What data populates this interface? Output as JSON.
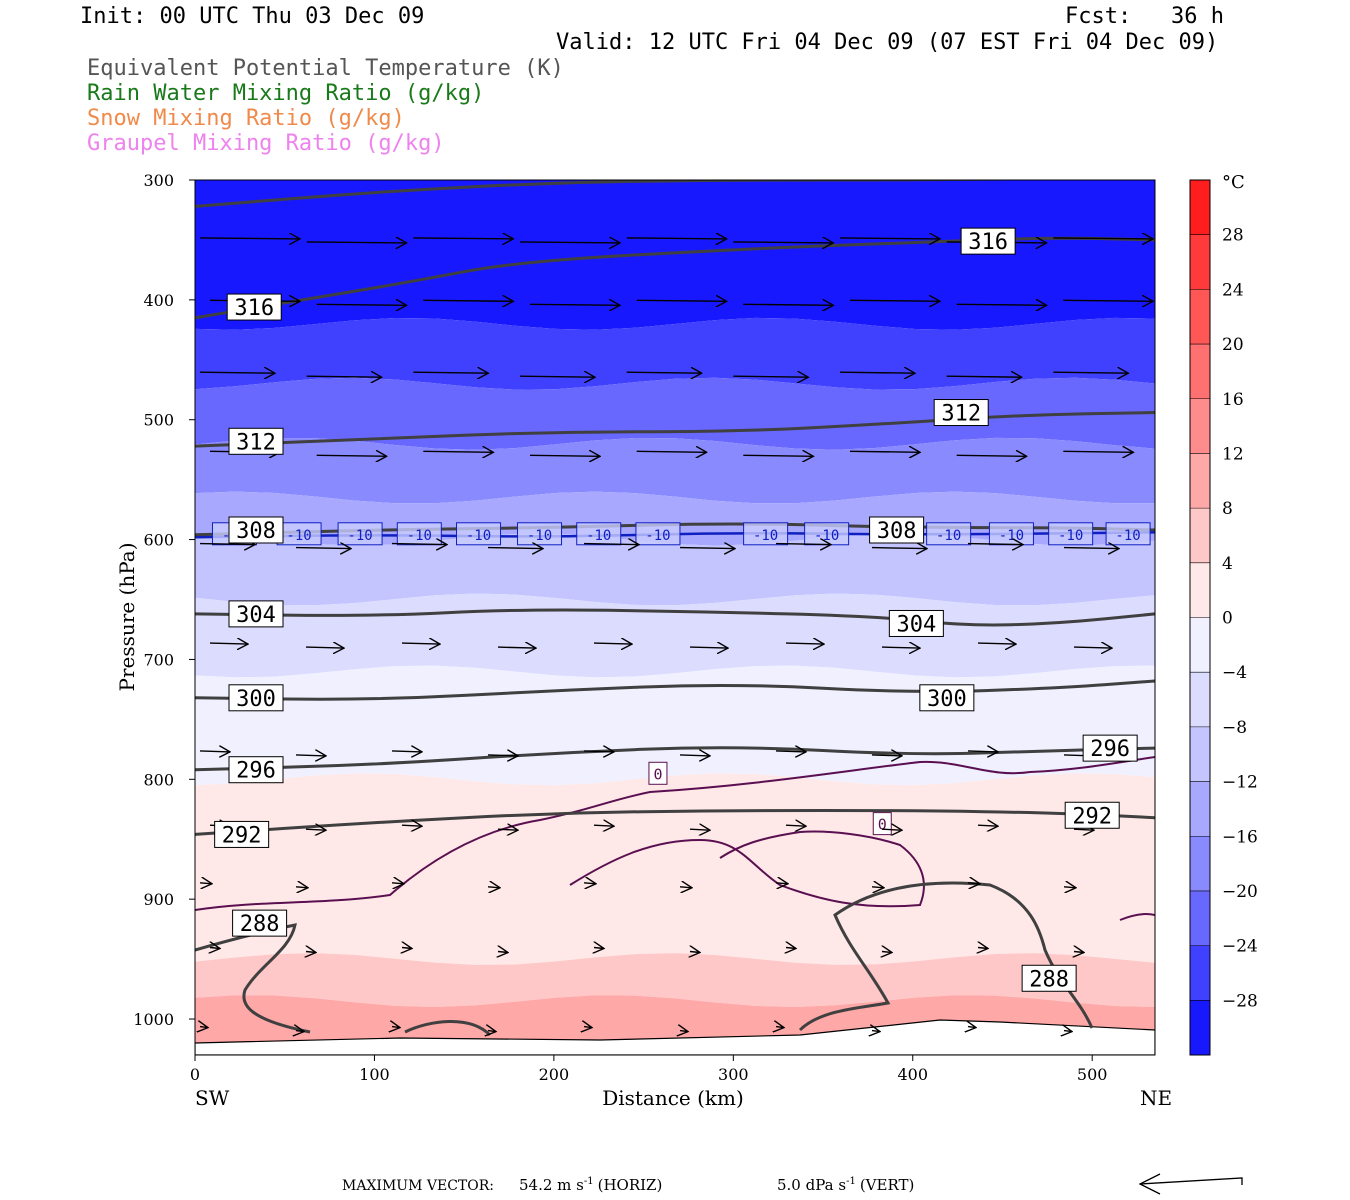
{
  "header": {
    "init": "Init: 00 UTC Thu 03 Dec 09",
    "fcst": "Fcst:   36 h",
    "valid": "Valid: 12 UTC Fri 04 Dec 09 (07 EST Fri 04 Dec 09)"
  },
  "legend": [
    {
      "label": "Equivalent Potential Temperature (K)",
      "color": "#555555"
    },
    {
      "label": "Rain Water Mixing Ratio (g/kg)",
      "color": "#1a7a1a"
    },
    {
      "label": "Snow Mixing Ratio (g/kg)",
      "color": "#f08a4b"
    },
    {
      "label": "Graupel Mixing Ratio (g/kg)",
      "color": "#ee82ee"
    }
  ],
  "footer": {
    "max_vector": "MAXIMUM VECTOR:",
    "horiz_value": "54.2 m s",
    "horiz_exp": "-1",
    "horiz_unit": "(HORIZ)",
    "vert_value": "5.0 dPa s",
    "vert_exp": "-1",
    "vert_unit": "(VERT)"
  },
  "chart_data": {
    "type": "cross-section",
    "xlabel": "Distance (km)",
    "ylabel": "Pressure (hPa)",
    "x_left_label": "SW",
    "x_right_label": "NE",
    "xlim": [
      0,
      535
    ],
    "ylim": [
      1025,
      300
    ],
    "xticks": [
      0,
      100,
      200,
      300,
      400,
      500
    ],
    "yticks": [
      300,
      400,
      500,
      600,
      700,
      800,
      900,
      1000
    ],
    "colorbar": {
      "unit": "°C",
      "ticks": [
        28,
        24,
        20,
        16,
        12,
        8,
        4,
        0,
        -4,
        -8,
        -12,
        -16,
        -20,
        -24,
        -28
      ],
      "levels": [
        {
          "from": 28,
          "to": 32,
          "color": "#ff1e1e"
        },
        {
          "from": 24,
          "to": 28,
          "color": "#ff3a3a"
        },
        {
          "from": 20,
          "to": 24,
          "color": "#ff5656"
        },
        {
          "from": 16,
          "to": 20,
          "color": "#ff7070"
        },
        {
          "from": 12,
          "to": 16,
          "color": "#ff8c8c"
        },
        {
          "from": 8,
          "to": 12,
          "color": "#ffa8a8"
        },
        {
          "from": 4,
          "to": 8,
          "color": "#ffc8c8"
        },
        {
          "from": 0,
          "to": 4,
          "color": "#ffe8e8"
        },
        {
          "from": -4,
          "to": 0,
          "color": "#f0f0ff"
        },
        {
          "from": -8,
          "to": -4,
          "color": "#dcdcff"
        },
        {
          "from": -12,
          "to": -8,
          "color": "#c4c4ff"
        },
        {
          "from": -16,
          "to": -12,
          "color": "#a8a8ff"
        },
        {
          "from": -20,
          "to": -16,
          "color": "#8a8aff"
        },
        {
          "from": -24,
          "to": -20,
          "color": "#6868ff"
        },
        {
          "from": -28,
          "to": -24,
          "color": "#4040ff"
        },
        {
          "from": -32,
          "to": -28,
          "color": "#1818ff"
        }
      ]
    },
    "temperature_bands": [
      {
        "p_top": 300,
        "p_bot": 420,
        "temp": -30
      },
      {
        "p_top": 420,
        "p_bot": 470,
        "temp": -26
      },
      {
        "p_top": 470,
        "p_bot": 520,
        "temp": -22
      },
      {
        "p_top": 520,
        "p_bot": 565,
        "temp": -18
      },
      {
        "p_top": 565,
        "p_bot": 600,
        "temp": -14
      },
      {
        "p_top": 600,
        "p_bot": 650,
        "temp": -10
      },
      {
        "p_top": 650,
        "p_bot": 710,
        "temp": -6
      },
      {
        "p_top": 710,
        "p_bot": 800,
        "temp": -2
      },
      {
        "p_top": 800,
        "p_bot": 950,
        "temp": 2
      },
      {
        "p_top": 950,
        "p_bot": 985,
        "temp": 6
      },
      {
        "p_top": 985,
        "p_bot": 1025,
        "temp": 9
      }
    ],
    "theta_e_contours": [
      {
        "label": "316",
        "points": [
          [
            0,
            322
          ],
          [
            100,
            310
          ],
          [
            200,
            302
          ],
          [
            300,
            300
          ],
          [
            400,
            300
          ],
          [
            535,
            298
          ]
        ]
      },
      {
        "label": "316",
        "points": [
          [
            0,
            415
          ],
          [
            60,
            400
          ],
          [
            120,
            385
          ],
          [
            180,
            368
          ],
          [
            300,
            358
          ],
          [
            400,
            352
          ],
          [
            480,
            348
          ],
          [
            535,
            350
          ]
        ]
      },
      {
        "label": "312",
        "points": [
          [
            0,
            522
          ],
          [
            100,
            516
          ],
          [
            200,
            510
          ],
          [
            300,
            510
          ],
          [
            380,
            504
          ],
          [
            460,
            496
          ],
          [
            535,
            494
          ]
        ]
      },
      {
        "label": "308",
        "points": [
          [
            0,
            596
          ],
          [
            100,
            592
          ],
          [
            200,
            590
          ],
          [
            300,
            586
          ],
          [
            400,
            590
          ],
          [
            480,
            590
          ],
          [
            535,
            592
          ]
        ]
      },
      {
        "label": "304",
        "points": [
          [
            0,
            662
          ],
          [
            100,
            664
          ],
          [
            180,
            658
          ],
          [
            280,
            660
          ],
          [
            380,
            664
          ],
          [
            430,
            672
          ],
          [
            480,
            670
          ],
          [
            535,
            662
          ]
        ]
      },
      {
        "label": "300",
        "points": [
          [
            0,
            732
          ],
          [
            100,
            734
          ],
          [
            200,
            726
          ],
          [
            300,
            720
          ],
          [
            400,
            728
          ],
          [
            480,
            724
          ],
          [
            535,
            718
          ]
        ]
      },
      {
        "label": "296",
        "points": [
          [
            0,
            792
          ],
          [
            100,
            788
          ],
          [
            200,
            778
          ],
          [
            300,
            772
          ],
          [
            400,
            780
          ],
          [
            480,
            776
          ],
          [
            535,
            774
          ]
        ]
      },
      {
        "label": "292",
        "points": [
          [
            0,
            846
          ],
          [
            100,
            836
          ],
          [
            200,
            828
          ],
          [
            300,
            826
          ],
          [
            400,
            826
          ],
          [
            480,
            828
          ],
          [
            535,
            832
          ]
        ]
      }
    ],
    "theta_e_labels": [
      {
        "text": "316",
        "x": 33,
        "p": 406
      },
      {
        "text": "316",
        "x": 442,
        "p": 351
      },
      {
        "text": "312",
        "x": 34,
        "p": 518
      },
      {
        "text": "312",
        "x": 427,
        "p": 494
      },
      {
        "text": "308",
        "x": 34,
        "p": 592
      },
      {
        "text": "308",
        "x": 391,
        "p": 592
      },
      {
        "text": "304",
        "x": 34,
        "p": 662
      },
      {
        "text": "304",
        "x": 402,
        "p": 670
      },
      {
        "text": "300",
        "x": 34,
        "p": 732
      },
      {
        "text": "300",
        "x": 419,
        "p": 732
      },
      {
        "text": "296",
        "x": 34,
        "p": 792
      },
      {
        "text": "296",
        "x": 510,
        "p": 774
      },
      {
        "text": "292",
        "x": 26,
        "p": 846
      },
      {
        "text": "292",
        "x": 500,
        "p": 830
      },
      {
        "text": "288",
        "x": 36,
        "p": 920
      },
      {
        "text": "288",
        "x": 476,
        "p": 966
      }
    ],
    "isotherm_minus10": {
      "label": "-10",
      "points": [
        [
          0,
          598
        ],
        [
          100,
          596
        ],
        [
          200,
          598
        ],
        [
          300,
          594
        ],
        [
          400,
          596
        ],
        [
          535,
          594
        ]
      ],
      "label_x": [
        22,
        58,
        92,
        125,
        158,
        192,
        225,
        258,
        318,
        352,
        420,
        455,
        488,
        520
      ]
    },
    "isotherm_zero": {
      "label": "0",
      "label_positions": [
        [
          258,
          810
        ],
        [
          383,
          852
        ]
      ]
    }
  }
}
